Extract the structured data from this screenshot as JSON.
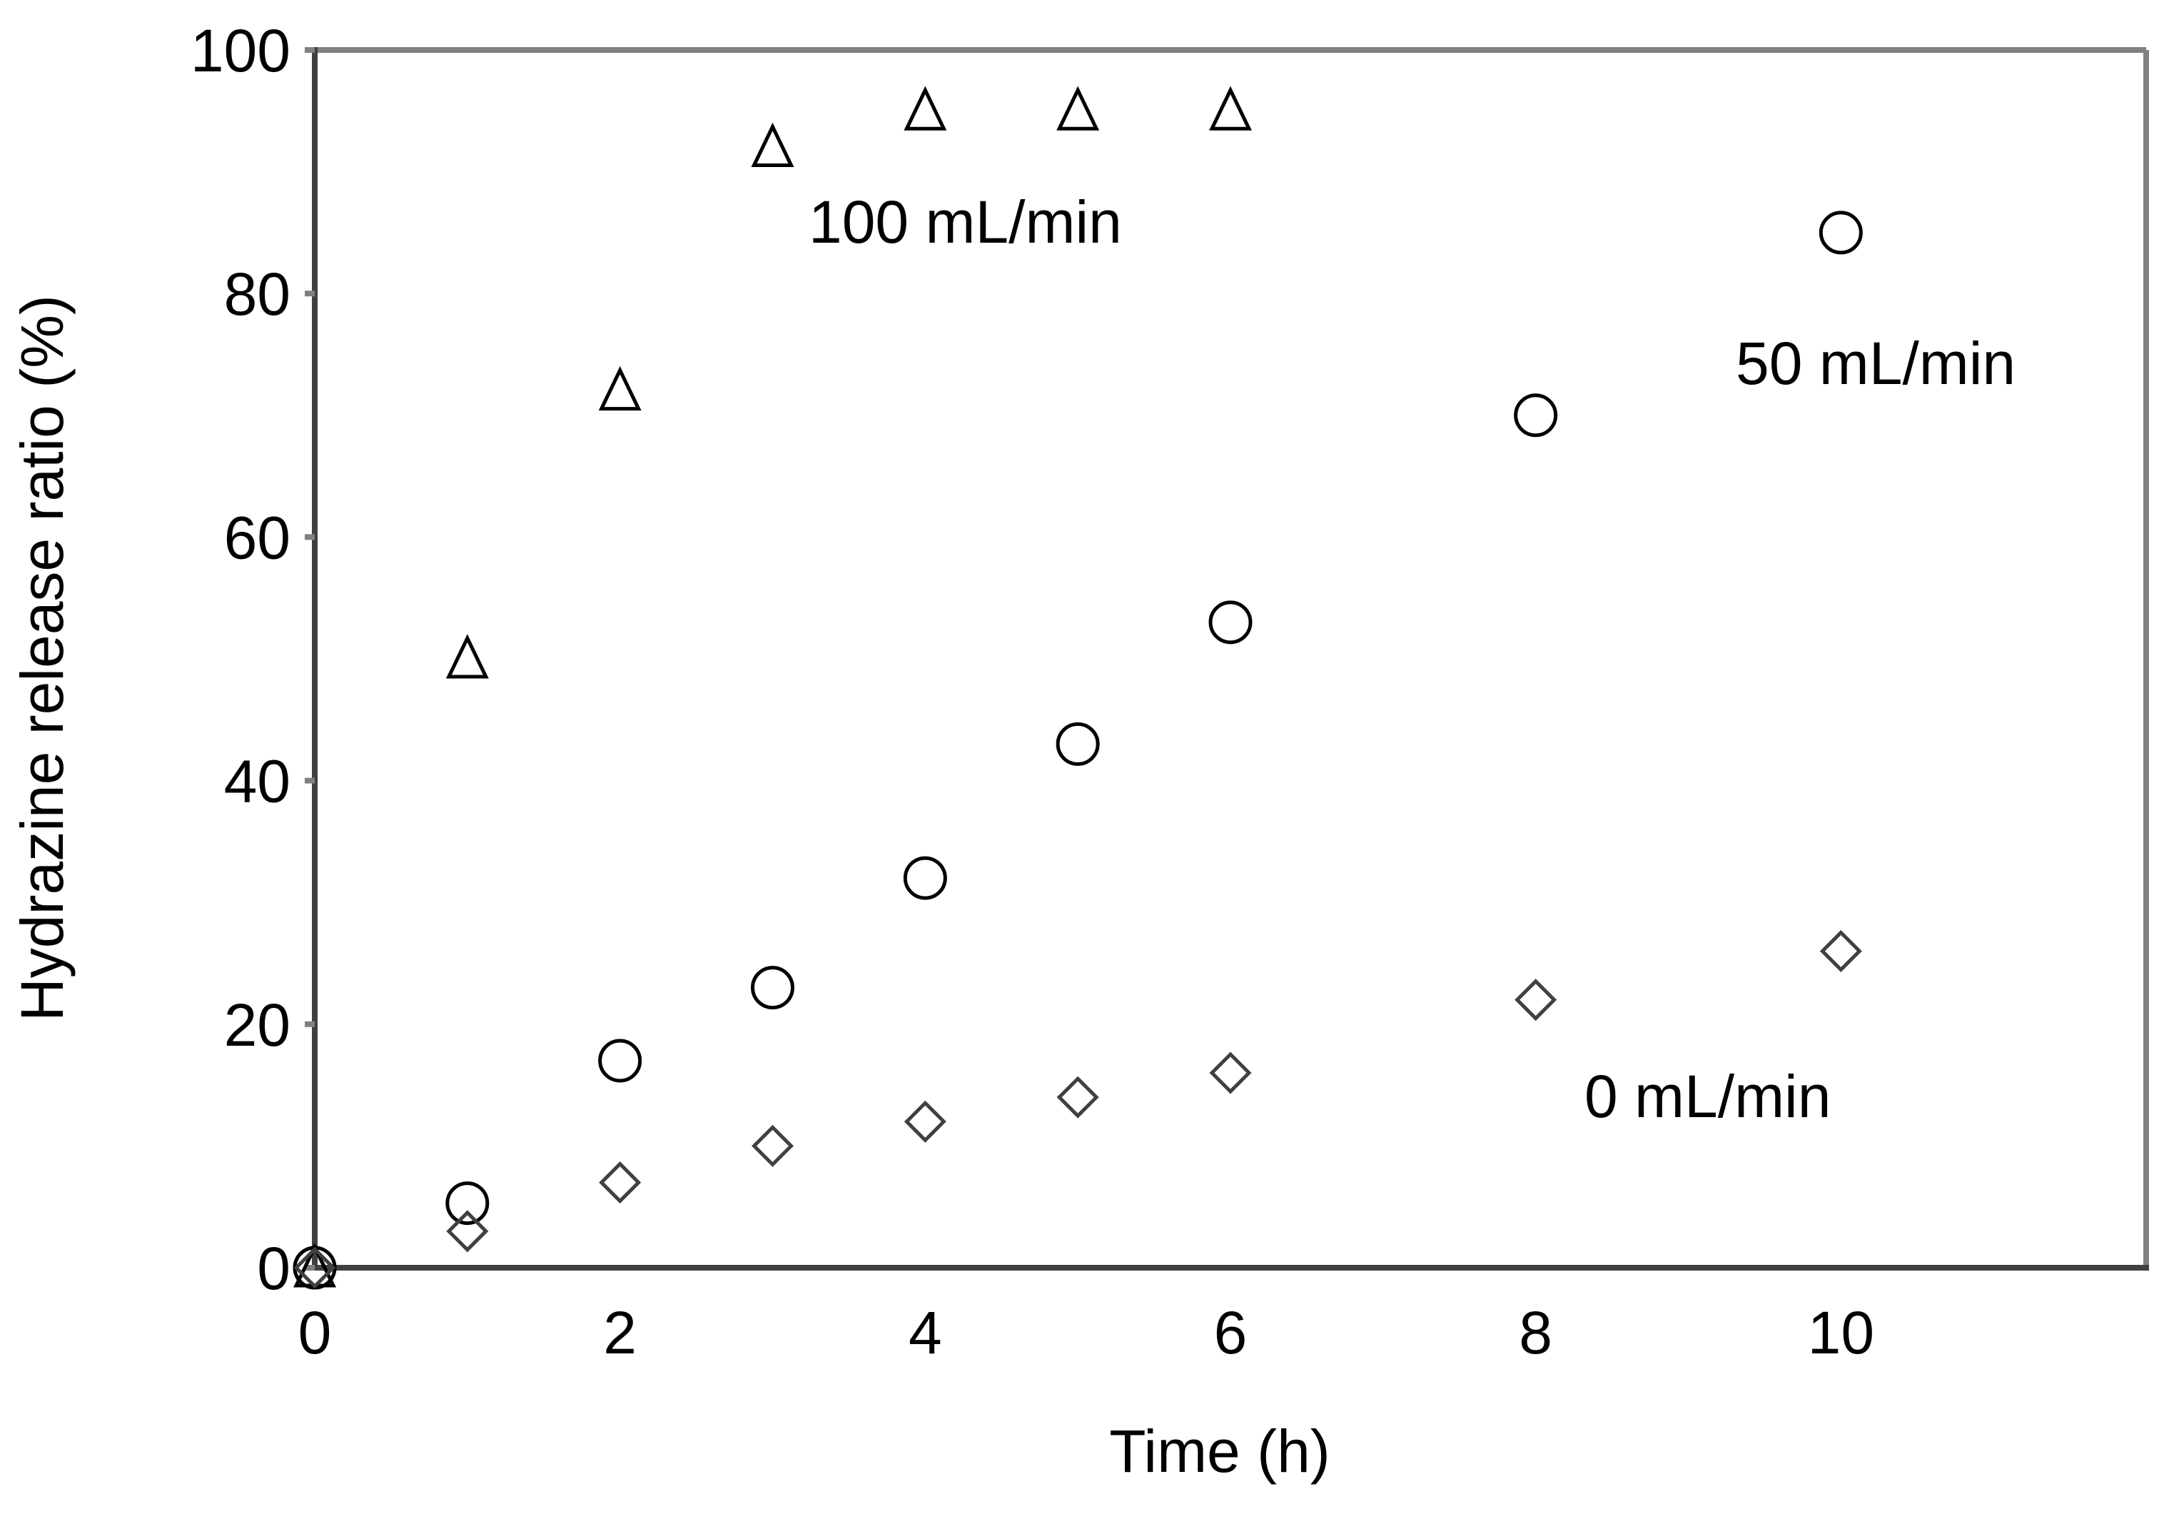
{
  "chart_data": {
    "type": "scatter",
    "title": "",
    "xlabel": "Time (h)",
    "ylabel": "Hydrazine release ratio (%)",
    "xlim": [
      0,
      12
    ],
    "ylim": [
      0,
      100
    ],
    "xticks": [
      0,
      2,
      4,
      6,
      8,
      10
    ],
    "yticks": [
      0,
      20,
      40,
      60,
      80,
      100
    ],
    "grid": false,
    "legend": "none (inline annotations)",
    "series": [
      {
        "name": "100 mL/min",
        "marker": "triangle",
        "x": [
          0,
          1,
          2,
          3,
          4,
          5,
          6
        ],
        "y": [
          0,
          50,
          72,
          92,
          95,
          95,
          95
        ]
      },
      {
        "name": "50 mL/min",
        "marker": "circle",
        "x": [
          0,
          1,
          2,
          3,
          4,
          5,
          6,
          8,
          10
        ],
        "y": [
          0,
          5.3,
          17,
          23,
          32,
          43,
          53,
          70,
          85
        ]
      },
      {
        "name": "0 mL/min",
        "marker": "diamond",
        "x": [
          0,
          1,
          2,
          3,
          4,
          5,
          6,
          8,
          10
        ],
        "y": [
          0,
          3,
          7,
          10,
          12,
          14,
          16,
          22,
          26
        ]
      }
    ],
    "annotations": [
      {
        "text": "100 mL/min",
        "x": 4.5,
        "y": 86
      },
      {
        "text": "50 mL/min",
        "x": 10.5,
        "y": 75
      },
      {
        "text": "0 mL/min",
        "x": 9.4,
        "y": 15
      }
    ]
  },
  "colors": {
    "axis_dark": "#404040",
    "frame_gray": "#808080",
    "marker_stroke": "#000000",
    "diamond_stroke": "#404040"
  },
  "labels": {
    "xlabel": "Time (h)",
    "ylabel": "Hydrazine release ratio (%)",
    "annot_100": "100 mL/min",
    "annot_50": "50 mL/min",
    "annot_0": "0 mL/min",
    "xtick": [
      "0",
      "2",
      "4",
      "6",
      "8",
      "10"
    ],
    "ytick": [
      "0",
      "20",
      "40",
      "60",
      "80",
      "100"
    ]
  }
}
